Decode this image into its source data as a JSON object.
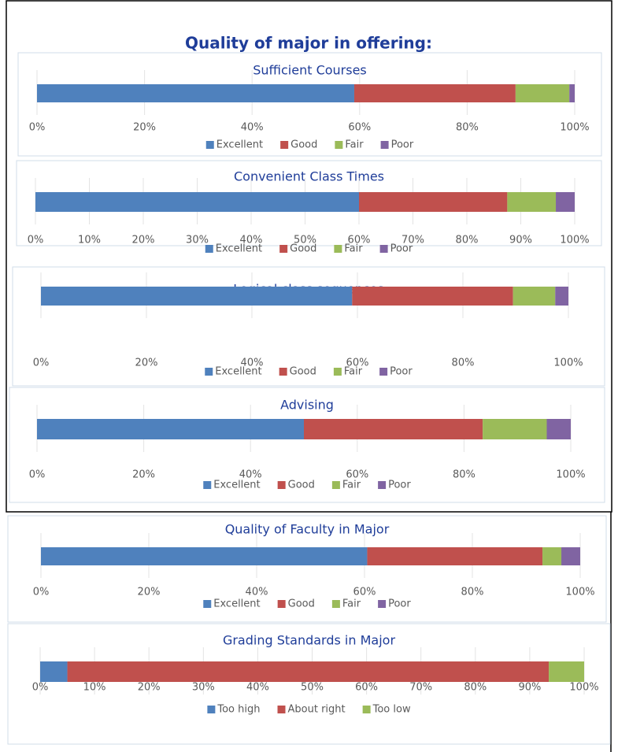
{
  "title": "Quality of major in offering:",
  "chart_data": [
    {
      "type": "bar",
      "orientation": "horizontal",
      "stacked": true,
      "title": "Sufficient Courses",
      "categories": [
        null
      ],
      "series": [
        {
          "name": "Excellent",
          "color": "#4f81bd",
          "values": [
            59
          ]
        },
        {
          "name": "Good",
          "color": "#c0504d",
          "values": [
            30
          ]
        },
        {
          "name": "Fair",
          "color": "#9bbb59",
          "values": [
            10
          ]
        },
        {
          "name": "Poor",
          "color": "#8064a2",
          "values": [
            1
          ]
        }
      ],
      "xlim": [
        0,
        100
      ],
      "xticks": [
        {
          "value": 0,
          "label": "0%"
        },
        {
          "value": 20,
          "label": "20%"
        },
        {
          "value": 40,
          "label": "40%"
        },
        {
          "value": 60,
          "label": "60%"
        },
        {
          "value": 80,
          "label": "80%"
        },
        {
          "value": 100,
          "label": "100%"
        }
      ],
      "legend": "bottom"
    },
    {
      "type": "bar",
      "orientation": "horizontal",
      "stacked": true,
      "title": "Convenient Class Times",
      "categories": [
        null
      ],
      "series": [
        {
          "name": "Excellent",
          "color": "#4f81bd",
          "values": [
            60
          ]
        },
        {
          "name": "Good",
          "color": "#c0504d",
          "values": [
            27.5
          ]
        },
        {
          "name": "Fair",
          "color": "#9bbb59",
          "values": [
            9
          ]
        },
        {
          "name": "Poor",
          "color": "#8064a2",
          "values": [
            3.5
          ]
        }
      ],
      "xlim": [
        0,
        100
      ],
      "xticks": [
        {
          "value": 0,
          "label": "0%"
        },
        {
          "value": 10,
          "label": "10%"
        },
        {
          "value": 20,
          "label": "20%"
        },
        {
          "value": 30,
          "label": "30%"
        },
        {
          "value": 40,
          "label": "40%"
        },
        {
          "value": 50,
          "label": "50%"
        },
        {
          "value": 60,
          "label": "60%"
        },
        {
          "value": 70,
          "label": "70%"
        },
        {
          "value": 80,
          "label": "80%"
        },
        {
          "value": 90,
          "label": "90%"
        },
        {
          "value": 100,
          "label": "100%"
        }
      ],
      "legend": "bottom"
    },
    {
      "type": "bar",
      "orientation": "horizontal",
      "stacked": true,
      "title": "Logical class sequences",
      "categories": [
        null
      ],
      "series": [
        {
          "name": "Excellent",
          "color": "#4f81bd",
          "values": [
            59
          ]
        },
        {
          "name": "Good",
          "color": "#c0504d",
          "values": [
            30.5
          ]
        },
        {
          "name": "Fair",
          "color": "#9bbb59",
          "values": [
            8
          ]
        },
        {
          "name": "Poor",
          "color": "#8064a2",
          "values": [
            2.5
          ]
        }
      ],
      "xlim": [
        0,
        100
      ],
      "xticks": [
        {
          "value": 0,
          "label": "0%"
        },
        {
          "value": 20,
          "label": "20%"
        },
        {
          "value": 40,
          "label": "40%"
        },
        {
          "value": 60,
          "label": "60%"
        },
        {
          "value": 80,
          "label": "80%"
        },
        {
          "value": 100,
          "label": "100%"
        }
      ],
      "legend": "bottom"
    },
    {
      "type": "bar",
      "orientation": "horizontal",
      "stacked": true,
      "title": "Advising",
      "categories": [
        null
      ],
      "series": [
        {
          "name": "Excellent",
          "color": "#4f81bd",
          "values": [
            50
          ]
        },
        {
          "name": "Good",
          "color": "#c0504d",
          "values": [
            33.5
          ]
        },
        {
          "name": "Fair",
          "color": "#9bbb59",
          "values": [
            12
          ]
        },
        {
          "name": "Poor",
          "color": "#8064a2",
          "values": [
            4.5
          ]
        }
      ],
      "xlim": [
        0,
        100
      ],
      "xticks": [
        {
          "value": 0,
          "label": "0%"
        },
        {
          "value": 20,
          "label": "20%"
        },
        {
          "value": 40,
          "label": "40%"
        },
        {
          "value": 60,
          "label": "60%"
        },
        {
          "value": 80,
          "label": "80%"
        },
        {
          "value": 100,
          "label": "100%"
        }
      ],
      "legend": "bottom"
    },
    {
      "type": "bar",
      "orientation": "horizontal",
      "stacked": true,
      "title": "Quality of Faculty in Major",
      "categories": [
        null
      ],
      "series": [
        {
          "name": "Excellent",
          "color": "#4f81bd",
          "values": [
            60.5
          ]
        },
        {
          "name": "Good",
          "color": "#c0504d",
          "values": [
            32.5
          ]
        },
        {
          "name": "Fair",
          "color": "#9bbb59",
          "values": [
            3.5
          ]
        },
        {
          "name": "Poor",
          "color": "#8064a2",
          "values": [
            3.5
          ]
        }
      ],
      "xlim": [
        0,
        100
      ],
      "xticks": [
        {
          "value": 0,
          "label": "0%"
        },
        {
          "value": 20,
          "label": "20%"
        },
        {
          "value": 40,
          "label": "40%"
        },
        {
          "value": 60,
          "label": "60%"
        },
        {
          "value": 80,
          "label": "80%"
        },
        {
          "value": 100,
          "label": "100%"
        }
      ],
      "legend": "bottom"
    },
    {
      "type": "bar",
      "orientation": "horizontal",
      "stacked": true,
      "title": "Grading Standards in Major",
      "categories": [
        null
      ],
      "series": [
        {
          "name": "Too high",
          "color": "#4f81bd",
          "values": [
            5
          ]
        },
        {
          "name": "About right",
          "color": "#c0504d",
          "values": [
            88.5
          ]
        },
        {
          "name": "Too low",
          "color": "#9bbb59",
          "values": [
            6.5
          ]
        }
      ],
      "xlim": [
        0,
        100
      ],
      "xticks": [
        {
          "value": 0,
          "label": "0%"
        },
        {
          "value": 10,
          "label": "10%"
        },
        {
          "value": 20,
          "label": "20%"
        },
        {
          "value": 30,
          "label": "30%"
        },
        {
          "value": 40,
          "label": "40%"
        },
        {
          "value": 50,
          "label": "50%"
        },
        {
          "value": 60,
          "label": "60%"
        },
        {
          "value": 70,
          "label": "70%"
        },
        {
          "value": 80,
          "label": "80%"
        },
        {
          "value": 90,
          "label": "90%"
        },
        {
          "value": 100,
          "label": "100%"
        }
      ],
      "legend": "bottom"
    }
  ]
}
